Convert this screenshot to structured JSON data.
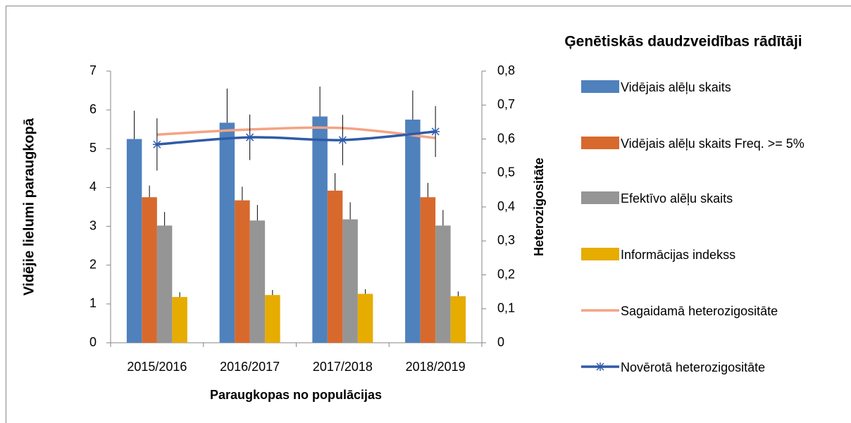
{
  "chart_data": {
    "type": "bar",
    "title": "Ģenētiskās daudzveidības rādītāji",
    "x_label": "Paraugkopas no populācijas",
    "y_label": "Vidējie lielumi paraugkopā",
    "y2_label": "Heterozigositāte",
    "categories": [
      "2015/2016",
      "2016/2017",
      "2017/2018",
      "2018/2019"
    ],
    "ylim": [
      0,
      7
    ],
    "yticks": [
      0,
      1,
      2,
      3,
      4,
      5,
      6,
      7
    ],
    "y2lim": [
      0,
      0.8
    ],
    "y2ticks": [
      0,
      {
        "value": 0.1,
        "label": "0,1"
      },
      {
        "value": 0.2,
        "label": "0,2"
      },
      {
        "value": 0.3,
        "label": "0,3"
      },
      {
        "value": 0.4,
        "label": "0,4"
      },
      {
        "value": 0.5,
        "label": "0,5"
      },
      {
        "value": 0.6,
        "label": "0,6"
      },
      {
        "value": 0.7,
        "label": "0,7"
      },
      {
        "value": 0.8,
        "label": "0,8"
      }
    ],
    "legend": "right",
    "series": [
      {
        "name": "Vidējais alēļu skaits",
        "type": "bar",
        "color": "#4f81bd",
        "values": [
          5.25,
          5.67,
          5.83,
          5.75
        ],
        "errors": [
          0.73,
          0.88,
          0.77,
          0.75
        ]
      },
      {
        "name": "Vidējais alēļu skaits Freq. >= 5%",
        "type": "bar",
        "color": "#d8692c",
        "values": [
          3.75,
          3.67,
          3.92,
          3.75
        ],
        "errors": [
          0.3,
          0.35,
          0.45,
          0.37
        ]
      },
      {
        "name": "Efektīvo alēļu skaits",
        "type": "bar",
        "color": "#959595",
        "values": [
          3.02,
          3.15,
          3.18,
          3.02
        ],
        "errors": [
          0.35,
          0.4,
          0.44,
          0.4
        ]
      },
      {
        "name": "Informācijas indekss",
        "type": "bar",
        "color": "#e6ac00",
        "values": [
          1.18,
          1.23,
          1.26,
          1.2
        ],
        "errors": [
          0.12,
          0.13,
          0.12,
          0.12
        ]
      },
      {
        "name": "Sagaidamā heterozigositāte",
        "type": "line",
        "axis": "y2",
        "color": "#f4a385",
        "values": [
          0.613,
          0.628,
          0.632,
          0.603
        ]
      },
      {
        "name": "Novērotā heterozigositāte",
        "type": "line",
        "axis": "y2",
        "color": "#2f5ba8",
        "marker": "asterisk",
        "values": [
          0.584,
          0.605,
          0.597,
          0.622
        ],
        "errors": [
          0.077,
          0.067,
          0.074,
          0.075
        ]
      }
    ]
  }
}
